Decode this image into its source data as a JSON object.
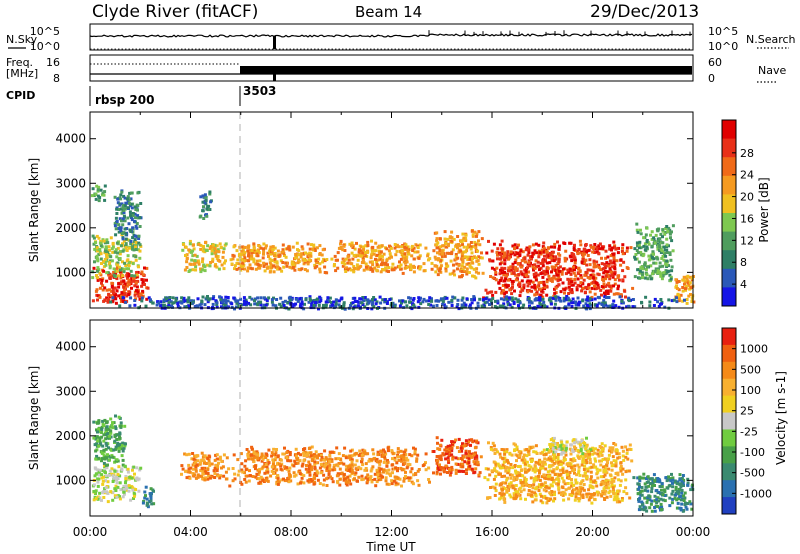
{
  "header": {
    "station": "Clyde River (fitACF)",
    "beam": "Beam 14",
    "date": "29/Dec/2013"
  },
  "strip": {
    "nsky_label": "N.Sky",
    "nsearch_label": "N.Search",
    "freq_label_1": "Freq.",
    "freq_label_2": "[MHz]",
    "nave_label": "Nave",
    "cpid_label": "CPID",
    "left_ticks_top": [
      "10^5",
      "10^0"
    ],
    "right_ticks_top": [
      "10^5",
      "10^0"
    ],
    "left_ticks_mid": [
      "16",
      "8"
    ],
    "right_ticks_mid": [
      "60",
      "0"
    ],
    "cpid_values": [
      {
        "time": 0.0,
        "label": "rbsp 200"
      },
      {
        "time": 6.0,
        "label": "3503"
      }
    ]
  },
  "chart_data": [
    {
      "type": "heatmap",
      "name": "power-panel",
      "ylabel": "Slant Range [km]",
      "yticks": [
        "1000",
        "2000",
        "3000",
        "4000"
      ],
      "ylim": [
        200,
        4600
      ],
      "xlim": [
        0,
        24
      ],
      "colorbar": {
        "label": "Power [dB]",
        "ticks": [
          "4",
          "8",
          "12",
          "16",
          "20",
          "24",
          "28"
        ],
        "colors": [
          "#1515e6",
          "#2a58b8",
          "#2e7f66",
          "#4f9d5e",
          "#7ec850",
          "#f0c020",
          "#f59a20",
          "#f06a18",
          "#e83018",
          "#e00000"
        ]
      },
      "regions": [
        {
          "t0": 0.0,
          "t1": 2.3,
          "r0": 300,
          "r1": 1150,
          "level": 8
        },
        {
          "t0": 0.0,
          "t1": 2.0,
          "r0": 900,
          "r1": 1900,
          "level": 4
        },
        {
          "t0": 0.9,
          "t1": 2.0,
          "r0": 1600,
          "r1": 2900,
          "level": 2
        },
        {
          "t0": 0.0,
          "t1": 0.6,
          "r0": 2600,
          "r1": 3000,
          "level": 3
        },
        {
          "t0": 3.5,
          "t1": 5.4,
          "r0": 1000,
          "r1": 1750,
          "level": 5
        },
        {
          "t0": 4.3,
          "t1": 4.8,
          "r0": 2200,
          "r1": 2900,
          "level": 2
        },
        {
          "t0": 5.4,
          "t1": 9.5,
          "r0": 1000,
          "r1": 1700,
          "level": 6
        },
        {
          "t0": 9.5,
          "t1": 13.5,
          "r0": 1000,
          "r1": 1750,
          "level": 6
        },
        {
          "t0": 13.5,
          "t1": 15.6,
          "r0": 900,
          "r1": 2000,
          "level": 6
        },
        {
          "t0": 15.6,
          "t1": 21.6,
          "r0": 450,
          "r1": 1750,
          "level": 8
        },
        {
          "t0": 21.6,
          "t1": 23.2,
          "r0": 800,
          "r1": 2150,
          "level": 3
        },
        {
          "t0": 23.2,
          "t1": 24.0,
          "r0": 300,
          "r1": 1000,
          "level": 6
        },
        {
          "t0": 0.0,
          "t1": 24.0,
          "r0": 200,
          "r1": 500,
          "level": 1
        }
      ]
    },
    {
      "type": "heatmap",
      "name": "velocity-panel",
      "ylabel": "Slant Range [km]",
      "yticks": [
        "1000",
        "2000",
        "3000",
        "4000"
      ],
      "ylim": [
        200,
        4600
      ],
      "xlim": [
        0,
        24
      ],
      "xticks": [
        "00:00",
        "04:00",
        "08:00",
        "12:00",
        "16:00",
        "20:00",
        "00:00"
      ],
      "xlabel": "Time UT",
      "colorbar": {
        "label": "Velocity [m s-1]",
        "ticks": [
          "1000",
          "500",
          "100",
          "25",
          "-25",
          "-100",
          "-500",
          "-1000"
        ],
        "colors": [
          "#2040c0",
          "#2a70b0",
          "#3a8a70",
          "#48a048",
          "#70cc40",
          "#c8c8c8",
          "#f0d020",
          "#f8b030",
          "#f58a18",
          "#f06010",
          "#e82010"
        ]
      },
      "regions": [
        {
          "t0": 0.0,
          "t1": 2.0,
          "r0": 500,
          "r1": 1400,
          "level": 5
        },
        {
          "t0": 0.0,
          "t1": 1.4,
          "r0": 1300,
          "r1": 2500,
          "level": 3
        },
        {
          "t0": 2.0,
          "t1": 2.5,
          "r0": 400,
          "r1": 900,
          "level": 2
        },
        {
          "t0": 3.5,
          "t1": 5.5,
          "r0": 1000,
          "r1": 1700,
          "level": 8
        },
        {
          "t0": 5.5,
          "t1": 13.5,
          "r0": 900,
          "r1": 1800,
          "level": 8
        },
        {
          "t0": 13.5,
          "t1": 15.6,
          "r0": 1100,
          "r1": 2000,
          "level": 9
        },
        {
          "t0": 15.6,
          "t1": 21.6,
          "r0": 500,
          "r1": 1900,
          "level": 7
        },
        {
          "t0": 18.0,
          "t1": 20.0,
          "r0": 1600,
          "r1": 2000,
          "level": 5
        },
        {
          "t0": 21.5,
          "t1": 24.0,
          "r0": 300,
          "r1": 1200,
          "level": 2
        }
      ]
    }
  ]
}
